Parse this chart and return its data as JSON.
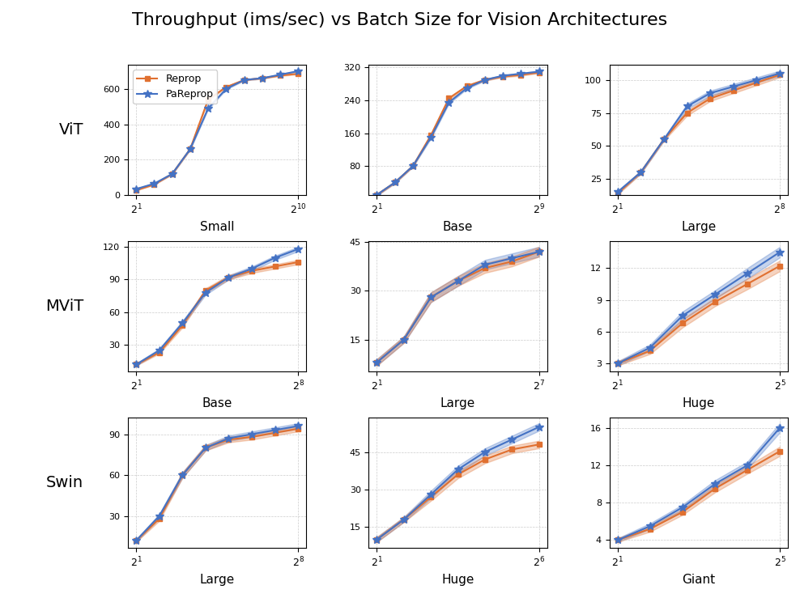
{
  "title": "Throughput (ims/sec) vs Batch Size for Vision Architectures",
  "rows": [
    "ViT",
    "MViT",
    "Swin"
  ],
  "cols": [
    [
      "Small",
      "Base",
      "Large"
    ],
    [
      "Base",
      "Large",
      "Huge"
    ],
    [
      "Large",
      "Huge",
      "Giant"
    ]
  ],
  "x_exp_ranges": [
    [
      [
        1,
        10
      ],
      [
        1,
        9
      ],
      [
        1,
        8
      ]
    ],
    [
      [
        1,
        8
      ],
      [
        1,
        7
      ],
      [
        1,
        5
      ]
    ],
    [
      [
        1,
        8
      ],
      [
        1,
        6
      ],
      [
        1,
        5
      ]
    ]
  ],
  "yticks": [
    [
      [
        0,
        200,
        400,
        600
      ],
      [
        80,
        160,
        240,
        320
      ],
      [
        25,
        50,
        75,
        100
      ]
    ],
    [
      [
        30,
        60,
        90,
        120
      ],
      [
        15,
        30,
        45
      ],
      [
        3,
        6,
        9,
        12
      ]
    ],
    [
      [
        30,
        60,
        90
      ],
      [
        15,
        30,
        45
      ],
      [
        4,
        8,
        12,
        16
      ]
    ]
  ],
  "pareprop": [
    [
      [
        35,
        65,
        120,
        260,
        490,
        600,
        650,
        660,
        680,
        700
      ],
      [
        10,
        40,
        80,
        150,
        235,
        270,
        290,
        300,
        305,
        310
      ],
      [
        15,
        30,
        55,
        80,
        90,
        95,
        100,
        105
      ]
    ],
    [
      [
        12,
        25,
        50,
        78,
        92,
        100,
        110,
        118
      ],
      [
        8,
        15,
        28,
        33,
        38,
        40,
        42
      ],
      [
        3.0,
        4.5,
        7.5,
        9.5,
        11.5,
        13.5
      ]
    ],
    [
      [
        12,
        30,
        60,
        80,
        87,
        90,
        93,
        96
      ],
      [
        10,
        18,
        28,
        38,
        45,
        50,
        55
      ],
      [
        4,
        5.5,
        7.5,
        10,
        12,
        16
      ]
    ]
  ],
  "reprop": [
    [
      [
        28,
        60,
        120,
        260,
        540,
        610,
        650,
        660,
        675,
        685
      ],
      [
        10,
        40,
        80,
        155,
        245,
        275,
        290,
        298,
        302,
        308
      ],
      [
        14,
        30,
        55,
        75,
        86,
        92,
        98,
        104
      ]
    ],
    [
      [
        12,
        23,
        48,
        80,
        92,
        98,
        102,
        106
      ],
      [
        8,
        15,
        28,
        33,
        37,
        39,
        42
      ],
      [
        3.0,
        4.2,
        6.8,
        8.8,
        10.5,
        12.2
      ]
    ],
    [
      [
        12,
        28,
        60,
        80,
        86,
        88,
        91,
        94
      ],
      [
        10,
        18,
        27,
        36,
        42,
        46,
        48
      ],
      [
        4,
        5.2,
        7.0,
        9.5,
        11.5,
        13.5
      ]
    ]
  ],
  "pareprop_err": [
    [
      [
        3,
        3,
        3,
        4,
        5,
        4,
        3,
        3,
        3,
        3
      ],
      [
        2,
        2,
        2,
        3,
        3,
        2,
        2,
        2,
        2,
        2
      ],
      [
        1,
        1,
        1,
        2,
        2,
        2,
        2,
        2
      ]
    ],
    [
      [
        1,
        1.5,
        2,
        2,
        2,
        2,
        2,
        2
      ],
      [
        1,
        1,
        1.5,
        1.5,
        1.5,
        1.5,
        1.5
      ],
      [
        0.2,
        0.3,
        0.4,
        0.4,
        0.5,
        0.5
      ]
    ],
    [
      [
        1,
        1.5,
        2,
        2,
        2,
        2,
        2,
        2
      ],
      [
        1,
        1,
        1.5,
        1.5,
        1.5,
        1.5,
        1.5
      ],
      [
        0.2,
        0.3,
        0.3,
        0.4,
        0.4,
        0.5
      ]
    ]
  ],
  "reprop_err": [
    [
      [
        2,
        2,
        3,
        4,
        4,
        4,
        3,
        3,
        3,
        3
      ],
      [
        2,
        2,
        2,
        3,
        3,
        2,
        2,
        2,
        2,
        2
      ],
      [
        1,
        1,
        1,
        2,
        2,
        2,
        2,
        2
      ]
    ],
    [
      [
        1,
        1,
        2,
        2,
        2,
        2,
        2,
        2
      ],
      [
        1,
        1,
        1.5,
        1.5,
        1.5,
        1.5,
        1.5
      ],
      [
        0.2,
        0.3,
        0.4,
        0.4,
        0.5,
        0.5
      ]
    ],
    [
      [
        1,
        1.5,
        2,
        2,
        2,
        2,
        2,
        2
      ],
      [
        1,
        1,
        1.5,
        1.5,
        1.5,
        1.5,
        1.5
      ],
      [
        0.2,
        0.3,
        0.3,
        0.4,
        0.4,
        0.5
      ]
    ]
  ],
  "color_pareprop": "#4472c4",
  "color_reprop": "#e07030",
  "title_fontsize": 16
}
